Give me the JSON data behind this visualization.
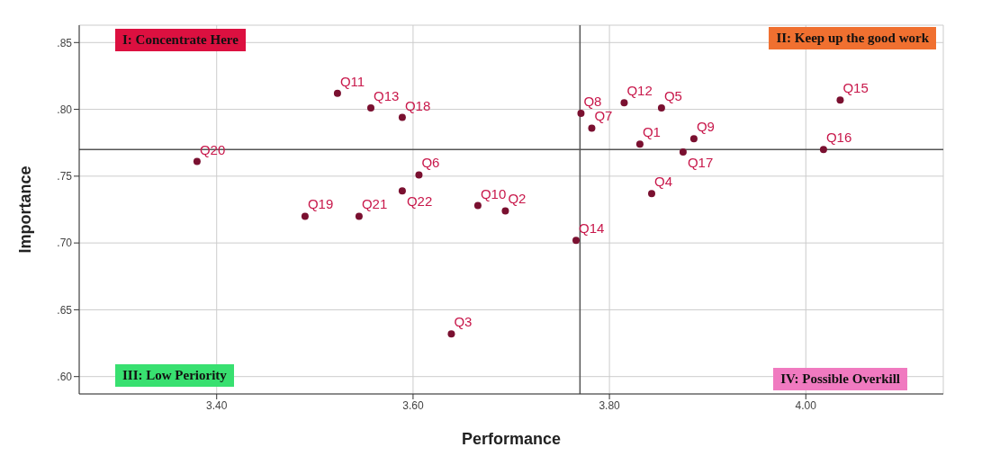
{
  "chart_data": {
    "type": "scatter",
    "xlabel": "Performance",
    "ylabel": "Importance",
    "x": [
      3.523,
      3.557,
      3.589,
      3.38,
      3.606,
      3.589,
      3.49,
      3.545,
      3.666,
      3.694,
      3.639,
      3.766,
      3.771,
      3.782,
      3.815,
      3.853,
      3.831,
      3.886,
      3.875,
      3.843,
      4.035,
      4.018
    ],
    "series": [
      {
        "color": "#7a1030",
        "values": [
          0.812,
          0.801,
          0.794,
          0.761,
          0.751,
          0.739,
          0.72,
          0.72,
          0.728,
          0.724,
          0.632,
          0.702,
          0.797,
          0.786,
          0.805,
          0.801,
          0.774,
          0.778,
          0.768,
          0.737,
          0.807,
          0.77
        ]
      }
    ],
    "xlim": [
      3.26,
      4.14
    ],
    "ylim": [
      0.587,
      0.863
    ],
    "xticks": [
      {
        "value": 3.4,
        "label": "3.40"
      },
      {
        "value": 3.6,
        "label": "3.60"
      },
      {
        "value": 3.8,
        "label": "3.80"
      },
      {
        "value": 4.0,
        "label": "4.00"
      }
    ],
    "yticks": [
      {
        "value": 0.6,
        "label": ".60"
      },
      {
        "value": 0.65,
        "label": ".65"
      },
      {
        "value": 0.7,
        "label": ".70"
      },
      {
        "value": 0.75,
        "label": ".75"
      },
      {
        "value": 0.8,
        "label": ".80"
      },
      {
        "value": 0.85,
        "label": ".85"
      }
    ],
    "grid": true,
    "legend": false,
    "marker": "circle",
    "ref_lines": [
      {
        "axis": "x",
        "value": 3.77,
        "color": "#555555"
      },
      {
        "axis": "y",
        "value": 0.77,
        "color": "#555555"
      }
    ],
    "annotations": [
      "I: Concentrate Here",
      "II: Keep up the good work",
      "III: Low Periority",
      "IV: Possible Overkill",
      {
        "text": "Q11",
        "x": 3.523,
        "y": 0.812
      },
      {
        "text": "Q13",
        "x": 3.557,
        "y": 0.801
      },
      {
        "text": "Q18",
        "x": 3.589,
        "y": 0.794
      },
      {
        "text": "Q20",
        "x": 3.38,
        "y": 0.761
      },
      {
        "text": "Q6",
        "x": 3.606,
        "y": 0.751
      },
      {
        "text": "Q22",
        "x": 3.589,
        "y": 0.739
      },
      {
        "text": "Q19",
        "x": 3.49,
        "y": 0.72
      },
      {
        "text": "Q21",
        "x": 3.545,
        "y": 0.72
      },
      {
        "text": "Q10",
        "x": 3.666,
        "y": 0.728
      },
      {
        "text": "Q2",
        "x": 3.694,
        "y": 0.724
      },
      {
        "text": "Q3",
        "x": 3.639,
        "y": 0.632
      },
      {
        "text": "Q14",
        "x": 3.766,
        "y": 0.702
      },
      {
        "text": "Q8",
        "x": 3.771,
        "y": 0.797
      },
      {
        "text": "Q7",
        "x": 3.782,
        "y": 0.786
      },
      {
        "text": "Q12",
        "x": 3.815,
        "y": 0.805
      },
      {
        "text": "Q5",
        "x": 3.853,
        "y": 0.801
      },
      {
        "text": "Q1",
        "x": 3.831,
        "y": 0.774
      },
      {
        "text": "Q9",
        "x": 3.886,
        "y": 0.778
      },
      {
        "text": "Q17",
        "x": 3.875,
        "y": 0.768
      },
      {
        "text": "Q4",
        "x": 3.843,
        "y": 0.737
      },
      {
        "text": "Q15",
        "x": 4.035,
        "y": 0.807
      },
      {
        "text": "Q16",
        "x": 4.018,
        "y": 0.77
      }
    ]
  }
}
